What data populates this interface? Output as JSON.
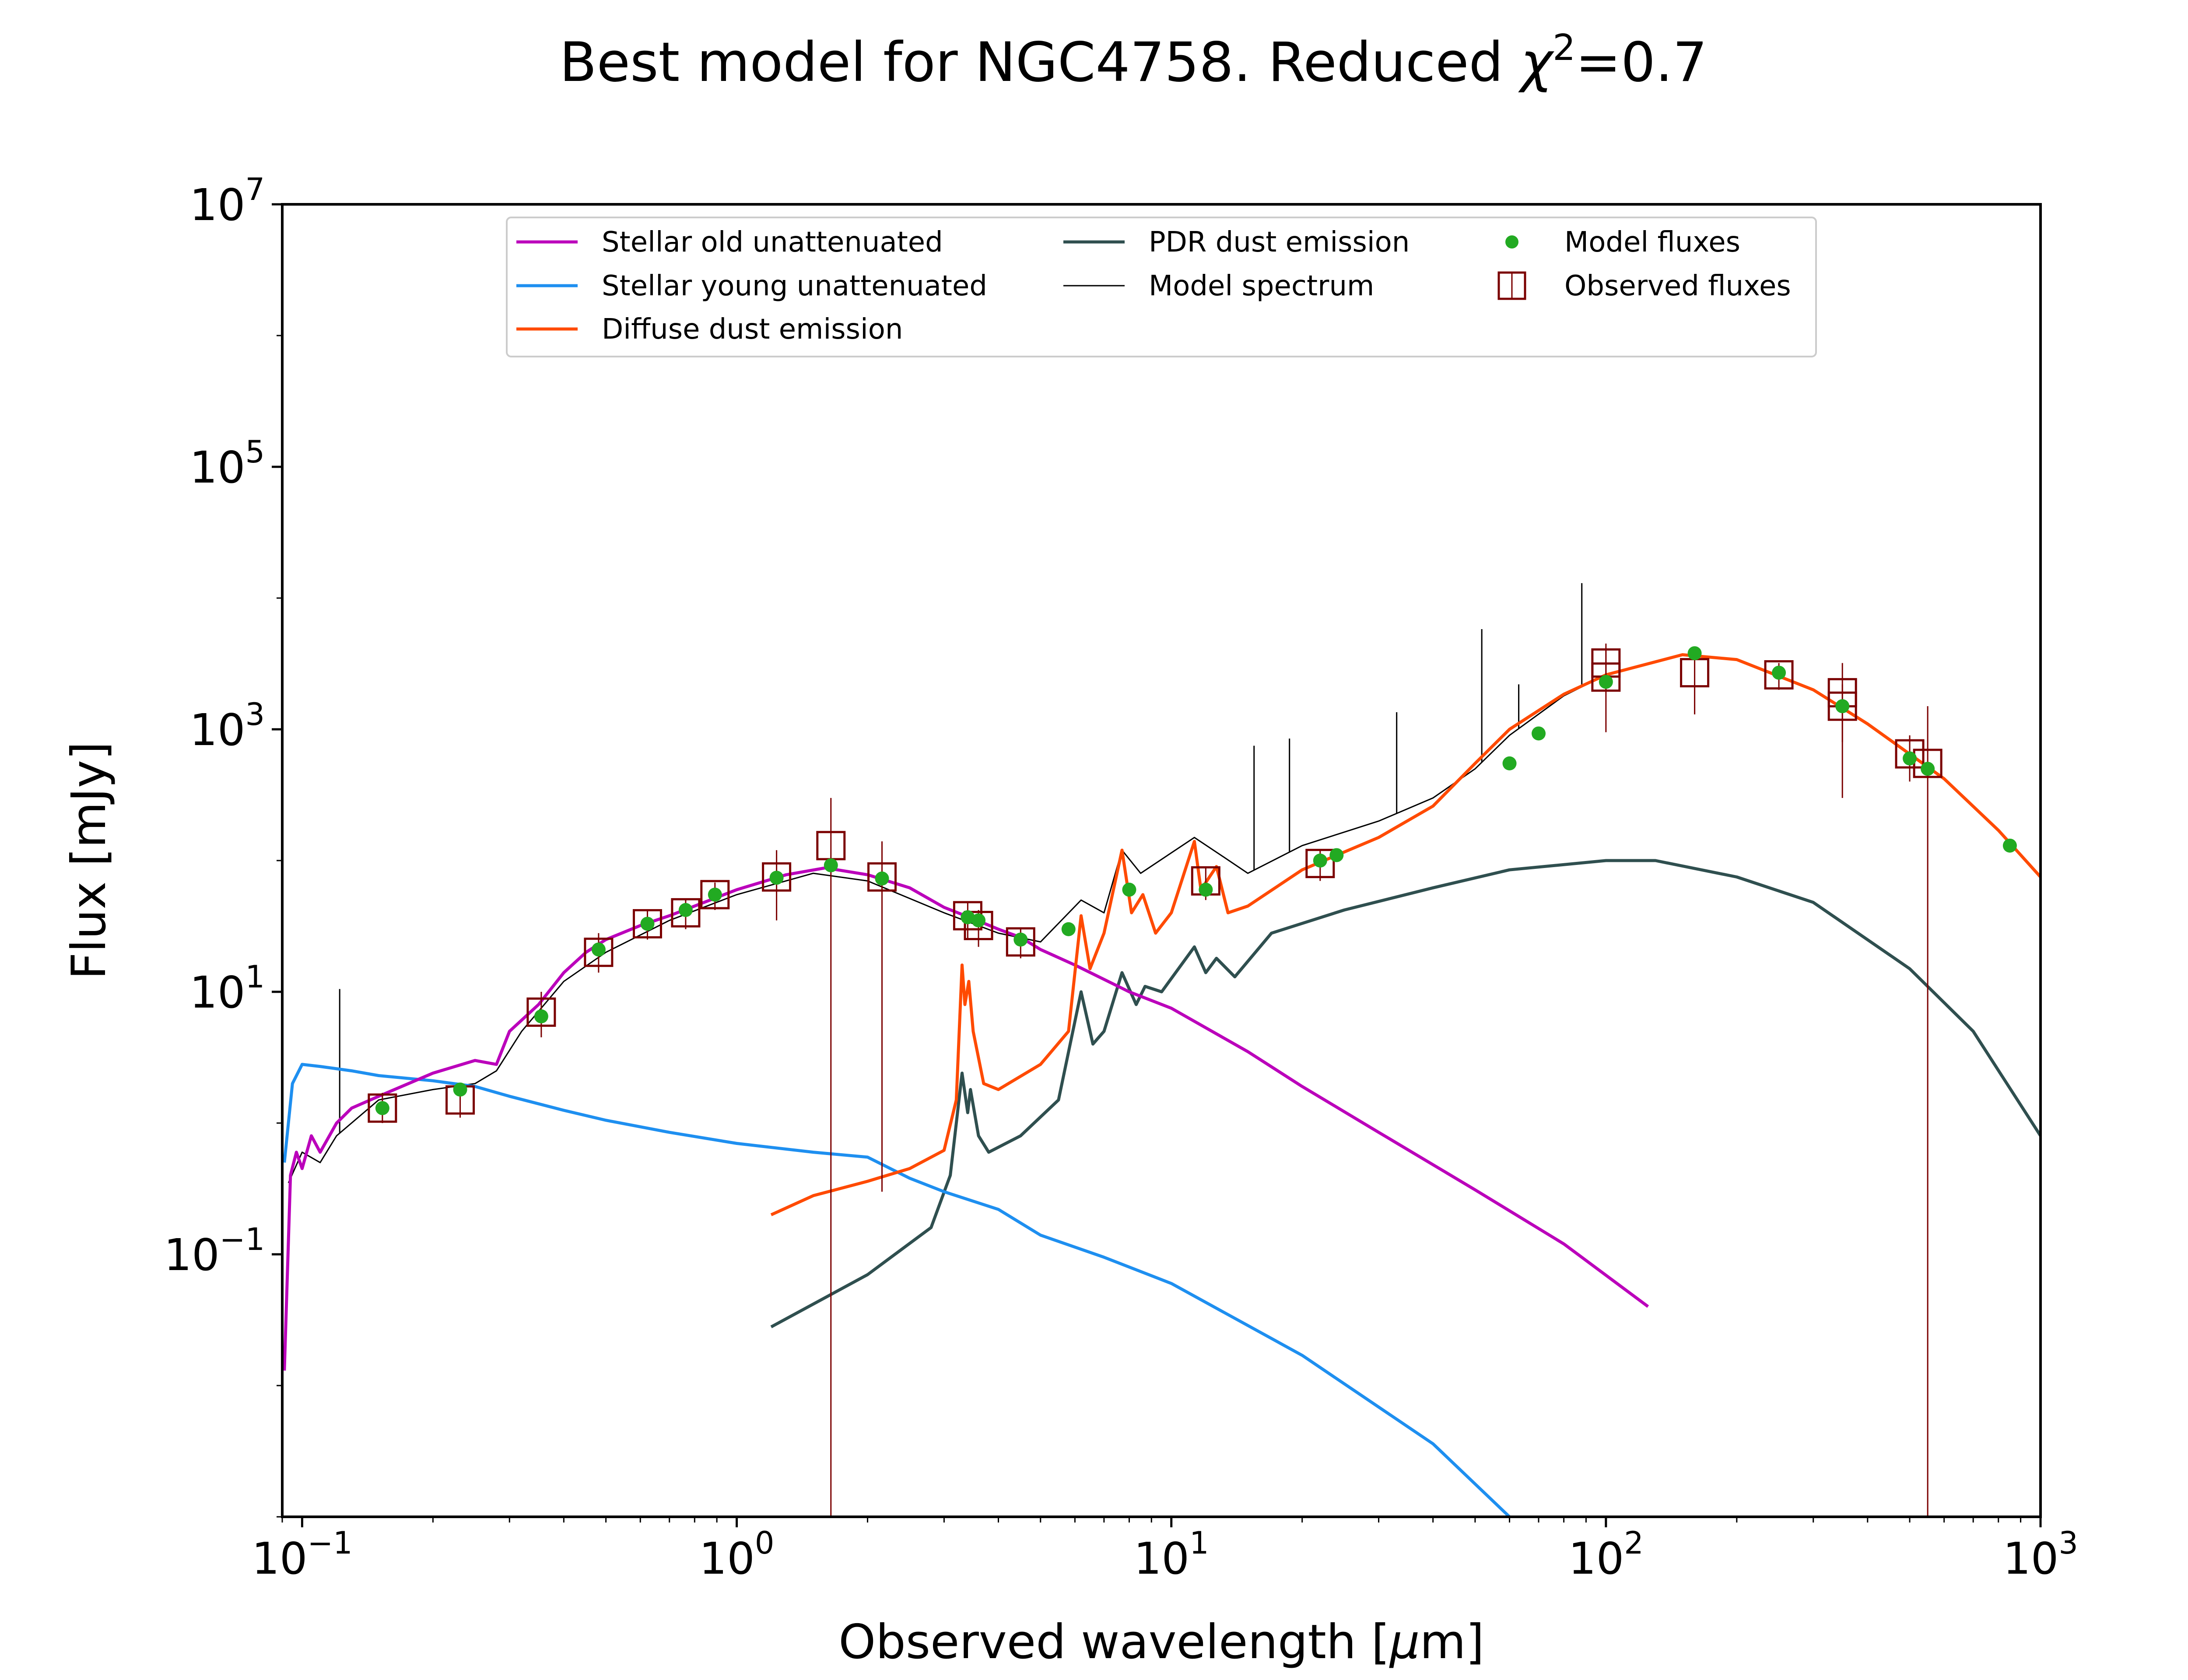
{
  "chart_data": {
    "type": "line",
    "title_main": "Best model for NGC4758. Reduced ",
    "title_chi": "χ",
    "title_exp": "2",
    "title_value": "=0.7",
    "xlabel_main": "Observed wavelength [",
    "xlabel_mu": "μ",
    "xlabel_unit": "m]",
    "ylabel": "Flux [mJy]",
    "x_scale": "log",
    "y_scale": "log",
    "xlim": [
      0.09,
      1000
    ],
    "ylim": [
      0.001,
      10000000
    ],
    "x_ticks": [
      {
        "value": 0.1,
        "base": "10",
        "exp": "−1"
      },
      {
        "value": 1,
        "base": "10",
        "exp": "0"
      },
      {
        "value": 10,
        "base": "10",
        "exp": "1"
      },
      {
        "value": 100,
        "base": "10",
        "exp": "2"
      },
      {
        "value": 1000,
        "base": "10",
        "exp": "3"
      }
    ],
    "y_ticks": [
      {
        "value": 0.1,
        "base": "10",
        "exp": "−1"
      },
      {
        "value": 10,
        "base": "10",
        "exp": "1"
      },
      {
        "value": 1000,
        "base": "10",
        "exp": "3"
      },
      {
        "value": 100000,
        "base": "10",
        "exp": "5"
      },
      {
        "value": 10000000,
        "base": "10",
        "exp": "7"
      }
    ],
    "grid": false,
    "legend_position": "top-center",
    "legend": [
      {
        "label": "Stellar old unattenuated",
        "kind": "line",
        "color": "#bb00bb"
      },
      {
        "label": "Stellar young unattenuated",
        "kind": "line",
        "color": "#1e8ff0"
      },
      {
        "label": "Diffuse dust emission",
        "kind": "line",
        "color": "#ff4a00"
      },
      {
        "label": "PDR dust emission",
        "kind": "line",
        "color": "#2f4f4f"
      },
      {
        "label": "Model spectrum",
        "kind": "thin-line",
        "color": "#000000"
      },
      {
        "label": "Model fluxes",
        "kind": "dot",
        "color": "#22aa22"
      },
      {
        "label": "Observed fluxes",
        "kind": "square",
        "color": "#7b0000"
      }
    ],
    "series": [
      {
        "name": "Stellar old unattenuated",
        "color": "#bb00bb",
        "points": [
          [
            0.091,
            0.013
          ],
          [
            0.094,
            0.4
          ],
          [
            0.097,
            0.6
          ],
          [
            0.1,
            0.45
          ],
          [
            0.105,
            0.8
          ],
          [
            0.11,
            0.6
          ],
          [
            0.12,
            1.0
          ],
          [
            0.13,
            1.3
          ],
          [
            0.15,
            1.6
          ],
          [
            0.2,
            2.4
          ],
          [
            0.25,
            3.0
          ],
          [
            0.28,
            2.8
          ],
          [
            0.3,
            5.0
          ],
          [
            0.35,
            8.0
          ],
          [
            0.4,
            14
          ],
          [
            0.45,
            20
          ],
          [
            0.5,
            25
          ],
          [
            0.6,
            32
          ],
          [
            0.7,
            38
          ],
          [
            0.8,
            45
          ],
          [
            1.0,
            60
          ],
          [
            1.3,
            78
          ],
          [
            1.6,
            88
          ],
          [
            2.0,
            78
          ],
          [
            2.5,
            62
          ],
          [
            3.0,
            44
          ],
          [
            3.5,
            36
          ],
          [
            4.0,
            30
          ],
          [
            4.5,
            26
          ],
          [
            5.0,
            21
          ],
          [
            6.0,
            16
          ],
          [
            8.0,
            10
          ],
          [
            10,
            7.5
          ],
          [
            15,
            3.5
          ],
          [
            20,
            1.9
          ],
          [
            30,
            0.85
          ],
          [
            50,
            0.31
          ],
          [
            80,
            0.12
          ],
          [
            125,
            0.04
          ]
        ]
      },
      {
        "name": "Stellar young unattenuated",
        "color": "#1e8ff0",
        "points": [
          [
            0.091,
            0.5
          ],
          [
            0.095,
            2.0
          ],
          [
            0.1,
            2.8
          ],
          [
            0.11,
            2.7
          ],
          [
            0.13,
            2.5
          ],
          [
            0.15,
            2.3
          ],
          [
            0.2,
            2.1
          ],
          [
            0.25,
            1.9
          ],
          [
            0.3,
            1.6
          ],
          [
            0.4,
            1.25
          ],
          [
            0.5,
            1.05
          ],
          [
            0.7,
            0.85
          ],
          [
            1.0,
            0.7
          ],
          [
            1.5,
            0.6
          ],
          [
            2.0,
            0.55
          ],
          [
            2.5,
            0.38
          ],
          [
            3.0,
            0.3
          ],
          [
            4.0,
            0.22
          ],
          [
            5.0,
            0.14
          ],
          [
            7.0,
            0.095
          ],
          [
            10,
            0.06
          ],
          [
            20,
            0.017
          ],
          [
            40,
            0.0036
          ],
          [
            60,
            0.001
          ]
        ]
      },
      {
        "name": "Diffuse dust emission",
        "color": "#ff4a00",
        "points": [
          [
            1.2,
            0.2
          ],
          [
            1.5,
            0.28
          ],
          [
            2.0,
            0.36
          ],
          [
            2.5,
            0.45
          ],
          [
            3.0,
            0.62
          ],
          [
            3.2,
            1.5
          ],
          [
            3.3,
            16
          ],
          [
            3.35,
            8
          ],
          [
            3.42,
            12
          ],
          [
            3.5,
            5
          ],
          [
            3.7,
            2.0
          ],
          [
            4.0,
            1.8
          ],
          [
            5.0,
            2.8
          ],
          [
            5.8,
            5.0
          ],
          [
            6.2,
            38
          ],
          [
            6.5,
            15
          ],
          [
            7.0,
            28
          ],
          [
            7.7,
            120
          ],
          [
            8.1,
            40
          ],
          [
            8.6,
            55
          ],
          [
            9.2,
            28
          ],
          [
            10,
            40
          ],
          [
            11.3,
            140
          ],
          [
            11.7,
            60
          ],
          [
            12.7,
            90
          ],
          [
            13.5,
            40
          ],
          [
            15,
            45
          ],
          [
            20,
            85
          ],
          [
            30,
            150
          ],
          [
            40,
            260
          ],
          [
            50,
            550
          ],
          [
            60,
            1000
          ],
          [
            80,
            1850
          ],
          [
            100,
            2600
          ],
          [
            150,
            3700
          ],
          [
            200,
            3400
          ],
          [
            300,
            2000
          ],
          [
            400,
            1100
          ],
          [
            600,
            420
          ],
          [
            800,
            170
          ],
          [
            1000,
            75
          ]
        ]
      },
      {
        "name": "PDR dust emission",
        "color": "#2f4f4f",
        "points": [
          [
            1.2,
            0.028
          ],
          [
            2.0,
            0.07
          ],
          [
            2.8,
            0.16
          ],
          [
            3.1,
            0.4
          ],
          [
            3.3,
            2.4
          ],
          [
            3.4,
            1.2
          ],
          [
            3.45,
            1.8
          ],
          [
            3.6,
            0.8
          ],
          [
            3.8,
            0.6
          ],
          [
            4.5,
            0.8
          ],
          [
            5.5,
            1.5
          ],
          [
            6.2,
            10
          ],
          [
            6.6,
            4
          ],
          [
            7.0,
            5
          ],
          [
            7.7,
            14
          ],
          [
            8.3,
            8
          ],
          [
            8.7,
            11
          ],
          [
            9.5,
            10
          ],
          [
            11.3,
            22
          ],
          [
            12,
            14
          ],
          [
            12.7,
            18
          ],
          [
            14,
            13
          ],
          [
            17,
            28
          ],
          [
            25,
            42
          ],
          [
            40,
            62
          ],
          [
            60,
            85
          ],
          [
            100,
            100
          ],
          [
            130,
            100
          ],
          [
            200,
            75
          ],
          [
            300,
            48
          ],
          [
            500,
            15
          ],
          [
            700,
            5
          ],
          [
            1000,
            0.8
          ]
        ]
      },
      {
        "name": "Model spectrum",
        "color": "#000000",
        "points": [
          [
            0.093,
            0.35
          ],
          [
            0.1,
            0.6
          ],
          [
            0.11,
            0.5
          ],
          [
            0.12,
            0.8
          ],
          [
            0.15,
            1.5
          ],
          [
            0.2,
            1.8
          ],
          [
            0.25,
            2.0
          ],
          [
            0.28,
            2.5
          ],
          [
            0.32,
            5
          ],
          [
            0.4,
            12
          ],
          [
            0.5,
            20
          ],
          [
            0.7,
            35
          ],
          [
            1.0,
            55
          ],
          [
            1.5,
            80
          ],
          [
            2.0,
            70
          ],
          [
            3.0,
            40
          ],
          [
            4.0,
            28
          ],
          [
            5.0,
            24
          ],
          [
            6.2,
            50
          ],
          [
            7.0,
            40
          ],
          [
            7.7,
            120
          ],
          [
            8.5,
            80
          ],
          [
            11.3,
            150
          ],
          [
            13,
            110
          ],
          [
            15,
            80
          ],
          [
            20,
            130
          ],
          [
            30,
            200
          ],
          [
            40,
            300
          ],
          [
            50,
            500
          ],
          [
            60,
            900
          ],
          [
            80,
            1800
          ],
          [
            100,
            2600
          ],
          [
            150,
            3700
          ],
          [
            200,
            3400
          ],
          [
            300,
            2000
          ],
          [
            400,
            1100
          ],
          [
            600,
            420
          ],
          [
            800,
            170
          ],
          [
            1000,
            75
          ]
        ],
        "spikes": [
          [
            0.122,
            10.5
          ],
          [
            15.5,
            750
          ],
          [
            18.7,
            850
          ],
          [
            33,
            1350
          ],
          [
            51.8,
            5800
          ],
          [
            63,
            2200
          ],
          [
            88,
            13000
          ]
        ]
      }
    ],
    "model_fluxes": [
      [
        0.153,
        1.3
      ],
      [
        0.231,
        1.8
      ],
      [
        0.355,
        6.5
      ],
      [
        0.481,
        21
      ],
      [
        0.623,
        33
      ],
      [
        0.763,
        42
      ],
      [
        0.891,
        55
      ],
      [
        1.235,
        74
      ],
      [
        1.647,
        92
      ],
      [
        2.159,
        73
      ],
      [
        3.4,
        37
      ],
      [
        3.6,
        35
      ],
      [
        4.5,
        25
      ],
      [
        5.8,
        30
      ],
      [
        8.0,
        60
      ],
      [
        12,
        60
      ],
      [
        22,
        100
      ],
      [
        24,
        110
      ],
      [
        60,
        550
      ],
      [
        70,
        930
      ],
      [
        100,
        2300
      ],
      [
        160,
        3800
      ],
      [
        250,
        2700
      ],
      [
        350,
        1500
      ],
      [
        500,
        600
      ],
      [
        550,
        500
      ],
      [
        850,
        130
      ]
    ],
    "observed_fluxes": [
      {
        "x": 0.153,
        "y": 1.3,
        "lo": 1.0,
        "hi": 1.7
      },
      {
        "x": 0.231,
        "y": 1.5,
        "lo": 1.1,
        "hi": 2.0
      },
      {
        "x": 0.355,
        "y": 7.0,
        "lo": 4.5,
        "hi": 10
      },
      {
        "x": 0.481,
        "y": 20,
        "lo": 14,
        "hi": 28
      },
      {
        "x": 0.623,
        "y": 33,
        "lo": 25,
        "hi": 42
      },
      {
        "x": 0.763,
        "y": 40,
        "lo": 30,
        "hi": 50
      },
      {
        "x": 0.891,
        "y": 55,
        "lo": 42,
        "hi": 68
      },
      {
        "x": 1.235,
        "y": 75,
        "lo": 35,
        "hi": 120
      },
      {
        "x": 1.647,
        "y": 130,
        "lo": 0.001,
        "hi": 300
      },
      {
        "x": 2.159,
        "y": 75,
        "lo": 0.3,
        "hi": 140
      },
      {
        "x": 3.4,
        "y": 38,
        "lo": 25,
        "hi": 48
      },
      {
        "x": 3.6,
        "y": 32,
        "lo": 22,
        "hi": 42
      },
      {
        "x": 4.5,
        "y": 24,
        "lo": 18,
        "hi": 30
      },
      {
        "x": 12,
        "y": 70,
        "lo": 50,
        "hi": 90
      },
      {
        "x": 22,
        "y": 95,
        "lo": 70,
        "hi": 120
      },
      {
        "x": 100,
        "y": 2500,
        "lo": 950,
        "hi": 4000
      },
      {
        "x": 100,
        "y": 3200,
        "lo": 2000,
        "hi": 4500
      },
      {
        "x": 160,
        "y": 2700,
        "lo": 1300,
        "hi": 3800
      },
      {
        "x": 250,
        "y": 2600,
        "lo": 2000,
        "hi": 3200
      },
      {
        "x": 350,
        "y": 1900,
        "lo": 300,
        "hi": 3200
      },
      {
        "x": 350,
        "y": 1500,
        "lo": 800,
        "hi": 2200
      },
      {
        "x": 500,
        "y": 650,
        "lo": 400,
        "hi": 900
      },
      {
        "x": 550,
        "y": 550,
        "lo": 0.001,
        "hi": 1500
      }
    ]
  }
}
